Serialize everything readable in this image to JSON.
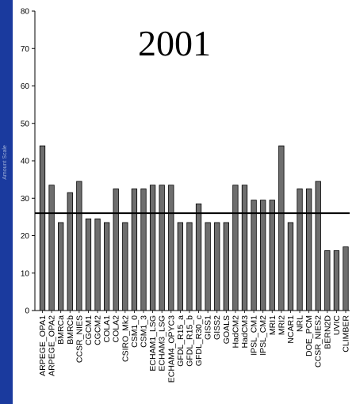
{
  "chart_data": {
    "type": "bar",
    "title": "2001",
    "ylabel": "Amount Scale",
    "ylim": [
      0,
      80
    ],
    "yticks": [
      0,
      10,
      20,
      30,
      40,
      50,
      60,
      70,
      80
    ],
    "grid": false,
    "reference_line": 26,
    "categories": [
      "ARPEGE_OPA1",
      "ARPEGE_OPA2",
      "BMRCa",
      "BMRCb",
      "CCSR_NIES",
      "CGCM1",
      "CGCM2",
      "COLA1",
      "COLA2",
      "CSIRO_Mk2",
      "CSM1_0",
      "CSM1_3",
      "ECHAM1_LSG",
      "ECHAM3_LSG",
      "ECHAM4_OPYC3",
      "GFDL_R15_a",
      "GFDL_R15_b",
      "GFDL_R30_c",
      "GISS1",
      "GISS2",
      "GOALS",
      "HadCM2",
      "HadCM3",
      "IPSL_CM1",
      "IPSL_CM2",
      "MRI1",
      "MRI2",
      "NCAR1",
      "NRL",
      "DOE_PCM",
      "CCSR_NIES2",
      "BERN2D",
      "UVIC",
      "CLIMBER"
    ],
    "values": [
      44,
      33.5,
      23.5,
      31.5,
      34.5,
      24.5,
      24.5,
      23.5,
      32.5,
      23.5,
      32.5,
      32.5,
      33.5,
      33.5,
      33.5,
      23.5,
      23.5,
      28.5,
      23.5,
      23.5,
      23.5,
      33.5,
      33.5,
      29.5,
      29.5,
      29.5,
      44,
      23.5,
      32.5,
      32.5,
      34.5,
      16,
      16,
      17
    ],
    "colors": {
      "bar_fill": "#6e6e6e",
      "bar_stroke": "#000000",
      "axis": "#000000",
      "background": "#ffffff",
      "frame": "#1a3a9e"
    }
  }
}
